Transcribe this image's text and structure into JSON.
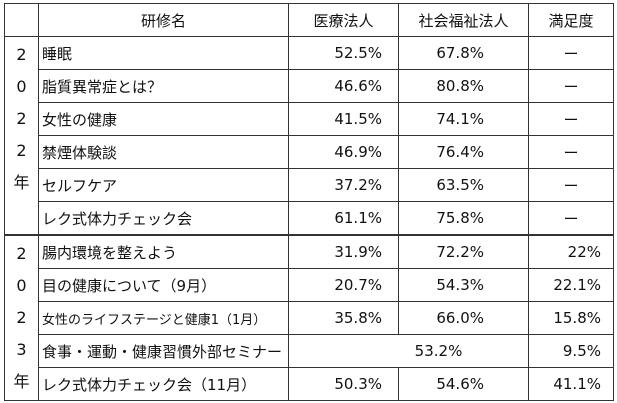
{
  "table": {
    "headers": [
      "",
      "研修名",
      "医療法人",
      "社会福祉法人",
      "満足度"
    ],
    "groups": [
      {
        "year_chars": [
          "2",
          "0",
          "2",
          "2",
          "年"
        ],
        "rows": [
          {
            "name": "睡眠",
            "iryo": "52.5%",
            "fukushi": "67.8%",
            "satisfaction": "ー"
          },
          {
            "name": "脂質異常症とは？",
            "iryo": "46.6%",
            "fukushi": "80.8%",
            "satisfaction": "ー"
          },
          {
            "name": "女性の健康",
            "iryo": "41.5%",
            "fukushi": "74.1%",
            "satisfaction": "ー"
          },
          {
            "name": "禁煙体験談",
            "iryo": "46.9%",
            "fukushi": "76.4%",
            "satisfaction": "ー"
          },
          {
            "name": "セルフケア",
            "iryo": "37.2%",
            "fukushi": "63.5%",
            "satisfaction": "ー"
          },
          {
            "name": "レク式体力チェック会",
            "iryo": "61.1%",
            "fukushi": "75.8%",
            "satisfaction": "ー"
          }
        ]
      },
      {
        "year_chars": [
          "2",
          "0",
          "2",
          "3",
          "年"
        ],
        "rows": [
          {
            "name": "腸内環境を整えよう",
            "iryo": "31.9%",
            "fukushi": "72.2%",
            "satisfaction": "22%"
          },
          {
            "name": "目の健康について（9月）",
            "iryo": "20.7%",
            "fukushi": "54.3%",
            "satisfaction": "22.1%"
          },
          {
            "name": "女性のライフステージと健康1（1月）",
            "iryo": "35.8%",
            "fukushi": "66.0%",
            "satisfaction": "15.8%"
          },
          {
            "name": "食事・運動・健康習慣外部セミナー",
            "combined": "53.2%",
            "satisfaction": "9.5%"
          },
          {
            "name": "レク式体力チェック会（11月）",
            "iryo": "50.3%",
            "fukushi": "54.6%",
            "satisfaction": "41.1%"
          }
        ]
      }
    ]
  }
}
